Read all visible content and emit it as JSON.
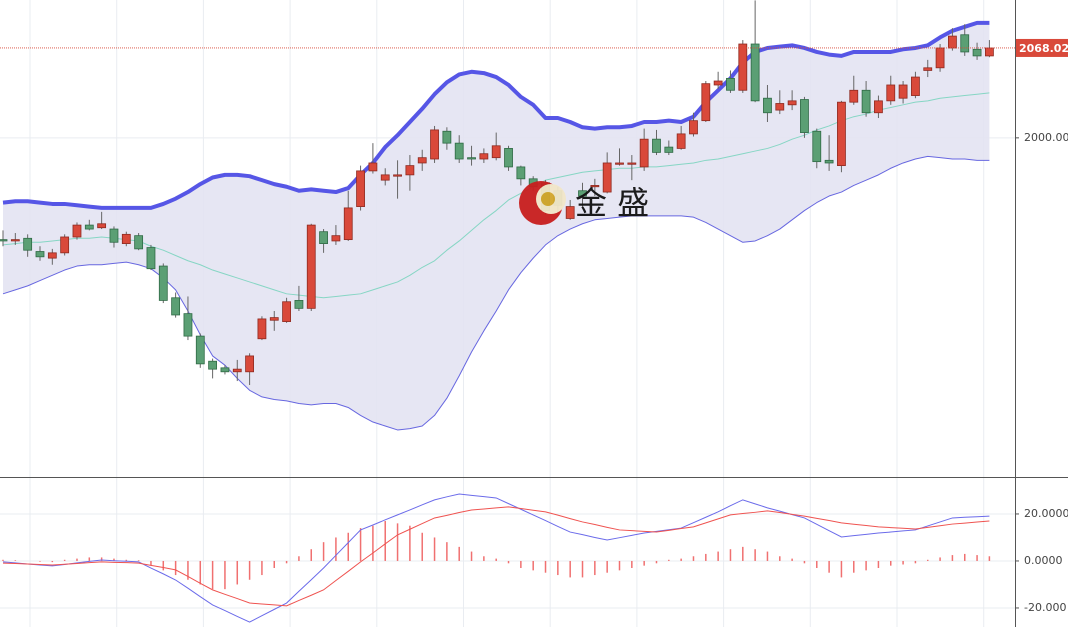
{
  "chart_data": [
    {
      "type": "candlestick",
      "open": [
        1923,
        1922,
        1924,
        1914,
        1909,
        1913,
        1925,
        1934,
        1932,
        1931,
        1920,
        1926,
        1917,
        1903,
        1879,
        1867,
        1850,
        1831,
        1826,
        1823,
        1823,
        1848,
        1862,
        1861,
        1877,
        1871,
        1929,
        1922,
        1923,
        1948,
        1975,
        1968,
        1971,
        1972,
        1981,
        1984,
        2005,
        1996,
        1985,
        1984,
        1985,
        1992,
        1978,
        1969,
        1966,
        1960,
        1939,
        1960,
        1963,
        1959,
        1980,
        1980,
        1978,
        1999,
        1993,
        1992,
        2003,
        2013,
        2040,
        2045,
        2036,
        2071,
        2030,
        2021,
        2025,
        2029,
        2005,
        1983,
        1979,
        2027,
        2036,
        2019,
        2028,
        2030,
        2032,
        2051,
        2053,
        2068,
        2078,
        2067,
        2062
      ],
      "high": [
        1930,
        1928,
        1927,
        1918,
        1916,
        1927,
        1936,
        1938,
        1944,
        1933,
        1929,
        1928,
        1919,
        1905,
        1883,
        1880,
        1852,
        1833,
        1828,
        1832,
        1837,
        1865,
        1869,
        1879,
        1888,
        1935,
        1931,
        1934,
        1960,
        1979,
        1996,
        1977,
        1983,
        1987,
        1991,
        2009,
        2008,
        2002,
        1994,
        1992,
        2004,
        1994,
        1979,
        1971,
        1968,
        1963,
        1953,
        1966,
        1969,
        1989,
        1992,
        1987,
        2007,
        2006,
        1998,
        2009,
        2019,
        2043,
        2050,
        2051,
        2074,
        2104,
        2040,
        2036,
        2036,
        2031,
        2007,
        2002,
        2028,
        2047,
        2043,
        2032,
        2047,
        2043,
        2050,
        2059,
        2071,
        2083,
        2086,
        2072,
        2074
      ],
      "low": [
        1918,
        1919,
        1910,
        1907,
        1904,
        1911,
        1923,
        1930,
        1931,
        1917,
        1918,
        1915,
        1900,
        1875,
        1864,
        1847,
        1826,
        1818,
        1821,
        1816,
        1813,
        1847,
        1854,
        1860,
        1869,
        1869,
        1913,
        1919,
        1922,
        1945,
        1973,
        1964,
        1954,
        1960,
        1975,
        1981,
        1991,
        1981,
        1979,
        1981,
        1983,
        1975,
        1964,
        1960,
        1942,
        1941,
        1938,
        1947,
        1956,
        1958,
        1979,
        1968,
        1975,
        1987,
        1987,
        1991,
        2001,
        2012,
        2037,
        2034,
        2034,
        2027,
        2012,
        2018,
        2021,
        2000,
        1977,
        1975,
        1974,
        2025,
        2016,
        2015,
        2025,
        2026,
        2030,
        2046,
        2050,
        2066,
        2062,
        2059,
        2061
      ],
      "close": [
        1922,
        1923,
        1915,
        1910,
        1913,
        1925,
        1934,
        1931,
        1935,
        1921,
        1927,
        1916,
        1901,
        1877,
        1866,
        1850,
        1829,
        1825,
        1823,
        1825,
        1835,
        1863,
        1864,
        1876,
        1871,
        1934,
        1920,
        1926,
        1947,
        1975,
        1981,
        1972,
        1972,
        1979,
        1985,
        2006,
        1996,
        1984,
        1984,
        1988,
        1994,
        1978,
        1969,
        1963,
        1945,
        1949,
        1948,
        1956,
        1964,
        1981,
        1981,
        1981,
        1999,
        1989,
        1989,
        2003,
        2013,
        2041,
        2043,
        2036,
        2071,
        2028,
        2019,
        2026,
        2028,
        2004,
        1982,
        1981,
        2027,
        2036,
        2019,
        2028,
        2040,
        2040,
        2046,
        2053,
        2068,
        2077,
        2065,
        2062,
        2068
      ],
      "up_color": "#d9493a",
      "down_color": "#5b9f74",
      "bands": [
        {
          "color": "#5656e6",
          "width": 4,
          "values": [
            1951,
            1952,
            1952,
            1951,
            1950,
            1950,
            1949,
            1948,
            1947,
            1947,
            1947,
            1947,
            1947,
            1950,
            1954,
            1959,
            1965,
            1970,
            1972,
            1972,
            1971,
            1968,
            1965,
            1963,
            1960,
            1961,
            1960,
            1959,
            1962,
            1972,
            1981,
            1993,
            2002,
            2012,
            2022,
            2033,
            2042,
            2048,
            2050,
            2049,
            2046,
            2040,
            2031,
            2025,
            2015,
            2015,
            2012,
            2008,
            2007,
            2008,
            2008,
            2009,
            2012,
            2012,
            2013,
            2012,
            2016,
            2027,
            2036,
            2045,
            2057,
            2065,
            2068,
            2069,
            2070,
            2068,
            2065,
            2063,
            2062,
            2065,
            2065,
            2065,
            2065,
            2067,
            2068,
            2070,
            2076,
            2081,
            2084,
            2087,
            2087
          ]
        },
        {
          "color": "#86d6c4",
          "width": 1,
          "values": [
            1919,
            1920,
            1921,
            1921,
            1922,
            1923,
            1924,
            1924,
            1925,
            1924,
            1923,
            1922,
            1918,
            1915,
            1911,
            1907,
            1904,
            1900,
            1897,
            1894,
            1891,
            1888,
            1885,
            1882,
            1881,
            1880,
            1879,
            1880,
            1881,
            1882,
            1885,
            1888,
            1891,
            1896,
            1902,
            1907,
            1915,
            1922,
            1930,
            1938,
            1945,
            1953,
            1958,
            1963,
            1968,
            1970,
            1972,
            1974,
            1975,
            1976,
            1977,
            1977,
            1978,
            1978,
            1979,
            1980,
            1981,
            1983,
            1984,
            1986,
            1988,
            1990,
            1992,
            1995,
            1999,
            2002,
            2006,
            2009,
            2013,
            2016,
            2018,
            2021,
            2023,
            2025,
            2027,
            2028,
            2030,
            2031,
            2032,
            2033,
            2034
          ]
        },
        {
          "color": "#6767e0",
          "width": 1,
          "values": [
            1882,
            1885,
            1888,
            1892,
            1896,
            1900,
            1903,
            1904,
            1904,
            1905,
            1906,
            1904,
            1901,
            1894,
            1885,
            1869,
            1851,
            1835,
            1828,
            1818,
            1809,
            1804,
            1802,
            1801,
            1799,
            1798,
            1799,
            1799,
            1796,
            1790,
            1785,
            1782,
            1779,
            1780,
            1782,
            1790,
            1803,
            1820,
            1838,
            1854,
            1869,
            1885,
            1898,
            1909,
            1919,
            1926,
            1931,
            1935,
            1938,
            1939,
            1940,
            1941,
            1941,
            1941,
            1941,
            1941,
            1940,
            1936,
            1931,
            1926,
            1921,
            1922,
            1926,
            1931,
            1938,
            1945,
            1951,
            1956,
            1959,
            1964,
            1968,
            1972,
            1977,
            1981,
            1984,
            1986,
            1985,
            1984,
            1984,
            1983,
            1983
          ]
        }
      ],
      "band_fill": "#e3e3f2",
      "last_price": 2068.02,
      "last_price_color": "#d9493a",
      "watermark": "金 盛",
      "ylim": [
        1743.4,
        2104.3
      ],
      "yticks": [
        {
          "value": 2000,
          "label": "2000.00"
        }
      ],
      "grid": true
    },
    {
      "type": "macd",
      "lines": [
        {
          "color": "#6b6bea",
          "values": [
            -0.4,
            -0.8,
            -1.3,
            -1.7,
            -2.1,
            -1.5,
            -0.8,
            -0.2,
            0.4,
            0.1,
            -0.1,
            -0.4,
            -3.0,
            -5.5,
            -8.1,
            -11.6,
            -15.2,
            -18.7,
            -21.1,
            -23.6,
            -26.0,
            -23.3,
            -20.6,
            -17.9,
            -12.9,
            -8.0,
            -3.0,
            2.4,
            7.8,
            13.2,
            15.3,
            17.5,
            19.6,
            21.7,
            23.9,
            26.0,
            27.3,
            28.5,
            27.9,
            27.4,
            26.8,
            24.4,
            22.0,
            19.6,
            17.2,
            14.7,
            12.3,
            11.2,
            10.0,
            8.9,
            9.9,
            10.9,
            11.9,
            12.6,
            13.3,
            14.0,
            16.3,
            18.6,
            20.9,
            23.5,
            26.0,
            24.3,
            22.6,
            21.2,
            19.7,
            18.3,
            15.6,
            12.9,
            10.2,
            10.8,
            11.3,
            11.9,
            12.3,
            12.8,
            13.2,
            14.9,
            16.6,
            18.3,
            18.6,
            18.8,
            19.1
          ]
        },
        {
          "color": "#ef5350",
          "values": [
            -0.9,
            -1.1,
            -1.3,
            -1.5,
            -1.7,
            -1.4,
            -1.1,
            -0.7,
            -0.4,
            -0.6,
            -0.7,
            -0.9,
            -1.9,
            -2.8,
            -3.8,
            -6.6,
            -9.5,
            -12.3,
            -14.2,
            -16.0,
            -17.9,
            -18.3,
            -18.7,
            -19.1,
            -16.8,
            -14.6,
            -12.3,
            -8.3,
            -4.4,
            -0.4,
            3.4,
            7.3,
            11.1,
            13.5,
            15.9,
            18.3,
            19.4,
            20.6,
            21.7,
            22.1,
            22.6,
            23.0,
            22.3,
            21.6,
            20.9,
            19.5,
            18.0,
            16.6,
            15.5,
            14.3,
            13.2,
            12.9,
            12.6,
            12.3,
            13.0,
            13.8,
            14.5,
            16.2,
            17.9,
            19.6,
            20.2,
            20.7,
            21.3,
            20.6,
            19.8,
            19.1,
            18.1,
            17.2,
            16.2,
            15.6,
            15.1,
            14.5,
            14.2,
            13.9,
            13.6,
            14.3,
            15.0,
            15.7,
            16.1,
            16.6,
            17.0
          ]
        }
      ],
      "histogram": {
        "color": "#f07070",
        "values": [
          0.5,
          0.3,
          0,
          -0.3,
          -0.5,
          0.5,
          1,
          1.5,
          1.5,
          1,
          0.5,
          0.3,
          -2,
          -4,
          -6,
          -8,
          -10,
          -12,
          -12,
          -10,
          -8,
          -6,
          -3,
          -1,
          2,
          5,
          8,
          10,
          12,
          14,
          15,
          17,
          16,
          15,
          12,
          10,
          8,
          6,
          4,
          2,
          1,
          -1,
          -3,
          -4,
          -5,
          -6,
          -7,
          -7,
          -6,
          -5,
          -4,
          -3,
          -2,
          -1,
          0.5,
          1,
          2,
          3,
          4,
          5,
          6,
          5,
          4,
          2,
          1,
          -1,
          -3,
          -5,
          -7,
          -5,
          -4,
          -3,
          -2,
          -1.5,
          -1,
          0.5,
          1.5,
          2.5,
          3,
          2.5,
          2
        ]
      },
      "ylim": [
        -28.1,
        35.3
      ],
      "yticks": [
        {
          "value": 20,
          "label": "20.0000"
        },
        {
          "value": 0,
          "label": "0.0000"
        },
        {
          "value": -20,
          "label": "-20.000"
        }
      ],
      "grid": true
    }
  ]
}
